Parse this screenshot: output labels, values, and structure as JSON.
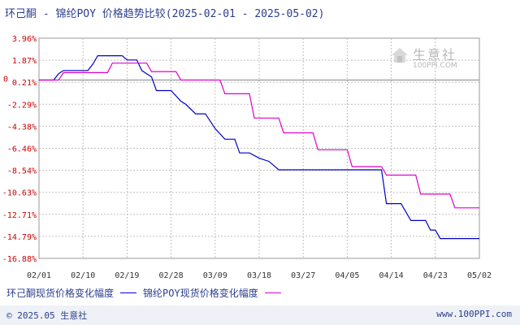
{
  "title": "环己酮 - 锦纶POY 价格趋势比较(2025-02-01 - 2025-05-02)",
  "footer": {
    "copyright": "© 2025.05 生意社",
    "url": "www.100PPI.com"
  },
  "watermark": {
    "name": "生意社",
    "url": "100PPI.COM"
  },
  "colors": {
    "series1": "#0000cc",
    "series2": "#dd00cc",
    "grid": "#c0c0c0",
    "ytick": "#cc0000",
    "zero": "#888888"
  },
  "chart_data": {
    "type": "line",
    "title": "环己酮 - 锦纶POY 价格趋势比较(2025-02-01 - 2025-05-02)",
    "xlabel": "",
    "ylabel": "",
    "ylim": [
      -16.88,
      3.96
    ],
    "x_range": [
      "2025-02-01",
      "2025-05-02"
    ],
    "grid": true,
    "legend_position": "bottom",
    "y_ticks": [
      "3.96%",
      "1.87%",
      "0.21%",
      "-2.29%",
      "-4.38%",
      "-6.46%",
      "-8.54%",
      "-10.63%",
      "-12.71%",
      "-14.79%",
      "-16.88%"
    ],
    "x_ticks": [
      "02/01",
      "02/10",
      "02/19",
      "02/28",
      "03/09",
      "03/18",
      "03/27",
      "04/05",
      "04/14",
      "04/23",
      "05/02"
    ],
    "series": [
      {
        "name": "环己酮现货价格变化幅度",
        "points": [
          [
            "2025-02-01",
            0.0
          ],
          [
            "2025-02-04",
            0.0
          ],
          [
            "2025-02-05",
            0.6
          ],
          [
            "2025-02-06",
            0.9
          ],
          [
            "2025-02-08",
            0.9
          ],
          [
            "2025-02-11",
            0.9
          ],
          [
            "2025-02-12",
            1.5
          ],
          [
            "2025-02-13",
            2.3
          ],
          [
            "2025-02-18",
            2.3
          ],
          [
            "2025-02-19",
            1.9
          ],
          [
            "2025-02-21",
            1.9
          ],
          [
            "2025-02-22",
            0.9
          ],
          [
            "2025-02-24",
            0.3
          ],
          [
            "2025-02-25",
            -1.0
          ],
          [
            "2025-02-28",
            -1.0
          ],
          [
            "2025-03-02",
            -2.0
          ],
          [
            "2025-03-03",
            -2.3
          ],
          [
            "2025-03-05",
            -3.2
          ],
          [
            "2025-03-07",
            -3.2
          ],
          [
            "2025-03-09",
            -4.6
          ],
          [
            "2025-03-11",
            -5.6
          ],
          [
            "2025-03-13",
            -5.6
          ],
          [
            "2025-03-14",
            -6.9
          ],
          [
            "2025-03-16",
            -6.9
          ],
          [
            "2025-03-18",
            -7.4
          ],
          [
            "2025-03-20",
            -7.7
          ],
          [
            "2025-03-22",
            -8.5
          ],
          [
            "2025-04-12",
            -8.5
          ],
          [
            "2025-04-13",
            -11.7
          ],
          [
            "2025-04-16",
            -11.7
          ],
          [
            "2025-04-18",
            -13.3
          ],
          [
            "2025-04-21",
            -13.3
          ],
          [
            "2025-04-22",
            -14.2
          ],
          [
            "2025-04-23",
            -14.2
          ],
          [
            "2025-04-24",
            -15.0
          ],
          [
            "2025-05-02",
            -15.0
          ]
        ]
      },
      {
        "name": "锦纶POY现货价格变化幅度",
        "points": [
          [
            "2025-02-01",
            0.0
          ],
          [
            "2025-02-05",
            0.0
          ],
          [
            "2025-02-06",
            0.7
          ],
          [
            "2025-02-15",
            0.7
          ],
          [
            "2025-02-16",
            1.6
          ],
          [
            "2025-02-23",
            1.6
          ],
          [
            "2025-02-24",
            0.8
          ],
          [
            "2025-03-01",
            0.8
          ],
          [
            "2025-03-02",
            0.0
          ],
          [
            "2025-03-10",
            0.0
          ],
          [
            "2025-03-11",
            -1.3
          ],
          [
            "2025-03-16",
            -1.3
          ],
          [
            "2025-03-17",
            -3.6
          ],
          [
            "2025-03-22",
            -3.6
          ],
          [
            "2025-03-23",
            -5.0
          ],
          [
            "2025-03-29",
            -5.0
          ],
          [
            "2025-03-30",
            -6.6
          ],
          [
            "2025-04-05",
            -6.6
          ],
          [
            "2025-04-06",
            -8.2
          ],
          [
            "2025-04-12",
            -8.2
          ],
          [
            "2025-04-13",
            -9.0
          ],
          [
            "2025-04-19",
            -9.0
          ],
          [
            "2025-04-20",
            -10.8
          ],
          [
            "2025-04-26",
            -10.8
          ],
          [
            "2025-04-27",
            -12.1
          ],
          [
            "2025-05-02",
            -12.1
          ]
        ]
      }
    ]
  }
}
